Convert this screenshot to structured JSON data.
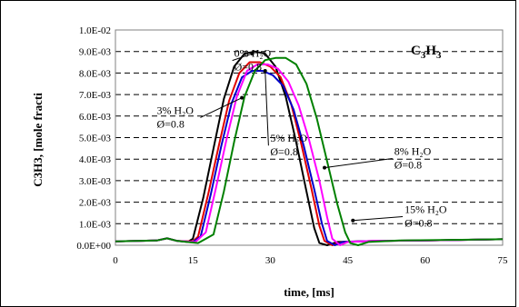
{
  "chart_data": {
    "type": "line",
    "title": "",
    "xlabel": "time, [ms]",
    "ylabel": "C3H3, [mole fracti",
    "xlim": [
      0,
      75
    ],
    "ylim": [
      0,
      0.01
    ],
    "x_ticks": [
      "0",
      "15",
      "30",
      "45",
      "60",
      "75"
    ],
    "y_ticks": [
      "0.0E+00",
      "1.0E-03",
      "2.0E-03",
      "3.0E-03",
      "4.0E-03",
      "5.0E-03",
      "6.0E-03",
      "7.0E-03",
      "8.0E-03",
      "9.0E-03",
      "1.0E-02"
    ],
    "grid": "horizontal dashed",
    "species_label": "C3H3",
    "annotations": [
      {
        "line1": "0% H2O",
        "line2": "Ø=0.8",
        "series": 0,
        "x": 23,
        "y": 0.00875,
        "tip_x": 26.5,
        "tip_y": 0.0089
      },
      {
        "line1": "3% H2O",
        "line2": "Ø=0.8",
        "series": 1,
        "x": 8,
        "y": 0.0061,
        "tip_x": 24.5,
        "tip_y": 0.00685
      },
      {
        "line1": "5% H2O",
        "line2": "Ø=0.8",
        "series": 2,
        "x": 30,
        "y": 0.0048,
        "tip_x": 29,
        "tip_y": 0.0081
      },
      {
        "line1": "8% H2O",
        "line2": "Ø=0.8",
        "series": 3,
        "x": 54,
        "y": 0.0042,
        "tip_x": 40.5,
        "tip_y": 0.0036
      },
      {
        "line1": "15% H2O",
        "line2": "Ø=0.8",
        "series": 4,
        "x": 56,
        "y": 0.0015,
        "tip_x": 46,
        "tip_y": 0.00115
      }
    ],
    "series": [
      {
        "color": "#000000",
        "points": [
          [
            0,
            0.00018
          ],
          [
            8,
            0.00022
          ],
          [
            10,
            0.00032
          ],
          [
            12,
            0.0002
          ],
          [
            14,
            0.00015
          ],
          [
            15,
            0.0003
          ],
          [
            17,
            0.0022
          ],
          [
            19,
            0.0045
          ],
          [
            21,
            0.0068
          ],
          [
            23,
            0.0083
          ],
          [
            25,
            0.0089
          ],
          [
            27,
            0.009
          ],
          [
            29,
            0.0089
          ],
          [
            31,
            0.0083
          ],
          [
            33,
            0.0069
          ],
          [
            35,
            0.0048
          ],
          [
            37,
            0.0025
          ],
          [
            38.5,
            0.0008
          ],
          [
            39.5,
            0.0001
          ],
          [
            41,
            0.0
          ],
          [
            43,
            0.00015
          ],
          [
            50,
            0.0002
          ],
          [
            60,
            0.00022
          ],
          [
            75,
            0.00028
          ]
        ]
      },
      {
        "color": "#e00000",
        "points": [
          [
            0,
            0.00018
          ],
          [
            8,
            0.00022
          ],
          [
            10,
            0.00032
          ],
          [
            12,
            0.0002
          ],
          [
            15,
            0.00018
          ],
          [
            16,
            0.0004
          ],
          [
            18,
            0.0024
          ],
          [
            20,
            0.0046
          ],
          [
            22,
            0.0067
          ],
          [
            24,
            0.008
          ],
          [
            26,
            0.0085
          ],
          [
            28,
            0.0085
          ],
          [
            30,
            0.0083
          ],
          [
            32,
            0.0078
          ],
          [
            34,
            0.0066
          ],
          [
            36,
            0.0047
          ],
          [
            38,
            0.0026
          ],
          [
            39.5,
            0.0009
          ],
          [
            40.5,
            0.0002
          ],
          [
            42,
            0.0
          ],
          [
            44,
            0.00015
          ],
          [
            50,
            0.0002
          ],
          [
            60,
            0.00022
          ],
          [
            75,
            0.00028
          ]
        ]
      },
      {
        "color": "#0000cc",
        "points": [
          [
            0,
            0.00018
          ],
          [
            8,
            0.00022
          ],
          [
            10,
            0.00032
          ],
          [
            12,
            0.0002
          ],
          [
            15,
            0.00015
          ],
          [
            16.5,
            0.0004
          ],
          [
            18.5,
            0.0024
          ],
          [
            20.5,
            0.0046
          ],
          [
            22.5,
            0.0066
          ],
          [
            24.5,
            0.0078
          ],
          [
            26.5,
            0.0081
          ],
          [
            28.5,
            0.0081
          ],
          [
            30.5,
            0.0079
          ],
          [
            32.5,
            0.0074
          ],
          [
            34.5,
            0.0063
          ],
          [
            36.5,
            0.0046
          ],
          [
            38.5,
            0.0026
          ],
          [
            40,
            0.001
          ],
          [
            41,
            0.0002
          ],
          [
            42.5,
            0.0
          ],
          [
            44,
            0.00015
          ],
          [
            50,
            0.0002
          ],
          [
            60,
            0.00022
          ],
          [
            75,
            0.00028
          ]
        ]
      },
      {
        "color": "#ff00ff",
        "points": [
          [
            0,
            0.00018
          ],
          [
            8,
            0.00022
          ],
          [
            10,
            0.00032
          ],
          [
            12,
            0.0002
          ],
          [
            15.5,
            0.00015
          ],
          [
            17.5,
            0.0006
          ],
          [
            19.5,
            0.0027
          ],
          [
            21.5,
            0.0049
          ],
          [
            23.5,
            0.0069
          ],
          [
            25.5,
            0.0081
          ],
          [
            27.5,
            0.0084
          ],
          [
            29.5,
            0.0084
          ],
          [
            31.5,
            0.0082
          ],
          [
            33.5,
            0.0076
          ],
          [
            35.5,
            0.0065
          ],
          [
            37.5,
            0.0049
          ],
          [
            39.5,
            0.003
          ],
          [
            41,
            0.0013
          ],
          [
            42,
            0.0003
          ],
          [
            43.5,
            0.0
          ],
          [
            45,
            0.00015
          ],
          [
            50,
            0.0002
          ],
          [
            60,
            0.00022
          ],
          [
            75,
            0.00028
          ]
        ]
      },
      {
        "color": "#008000",
        "points": [
          [
            0,
            0.00018
          ],
          [
            8,
            0.00022
          ],
          [
            10,
            0.00032
          ],
          [
            12,
            0.0002
          ],
          [
            16,
            0.0001
          ],
          [
            19,
            0.0005
          ],
          [
            21,
            0.0025
          ],
          [
            23,
            0.0048
          ],
          [
            25,
            0.0069
          ],
          [
            27,
            0.0081
          ],
          [
            29,
            0.0086
          ],
          [
            31,
            0.0087
          ],
          [
            33,
            0.0087
          ],
          [
            35,
            0.0084
          ],
          [
            37,
            0.0075
          ],
          [
            39,
            0.0059
          ],
          [
            41,
            0.0039
          ],
          [
            43,
            0.0019
          ],
          [
            44.5,
            0.0006
          ],
          [
            45.5,
            0.0001
          ],
          [
            47,
            0.0
          ],
          [
            49,
            0.00015
          ],
          [
            55,
            0.00022
          ],
          [
            65,
            0.00025
          ],
          [
            75,
            0.00028
          ]
        ]
      }
    ]
  }
}
